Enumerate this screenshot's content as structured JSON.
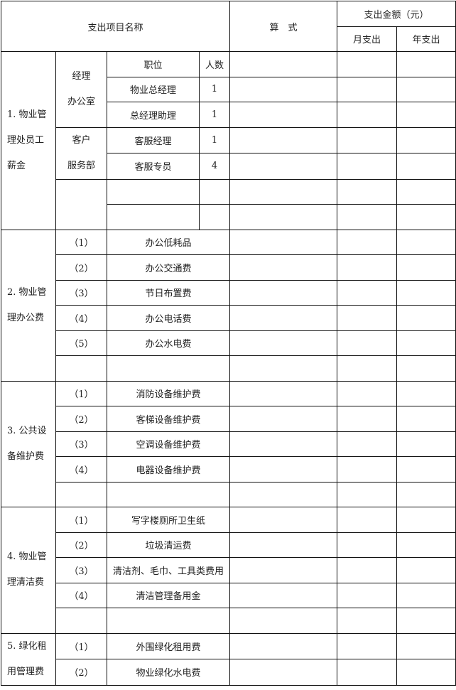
{
  "header": {
    "item_name": "支出项目名称",
    "formula": "算　式",
    "amount": "支出金额（元）",
    "monthly": "月支出",
    "yearly": "年支出"
  },
  "section1": {
    "title_lines": [
      "1. 物业管",
      "理处员工",
      "薪金"
    ],
    "position_header": "职位",
    "count_header": "人数",
    "departments": [
      {
        "name_lines": [
          "经理",
          "办公室"
        ],
        "staff": [
          {
            "position": "物业总经理",
            "count": "1"
          },
          {
            "position": "总经理助理",
            "count": "1"
          }
        ]
      },
      {
        "name_lines": [
          "客户",
          "服务部"
        ],
        "staff": [
          {
            "position": "客服经理",
            "count": "1"
          },
          {
            "position": "客服专员",
            "count": "4"
          }
        ]
      }
    ]
  },
  "sections": [
    {
      "title_lines": [
        "2. 物业管",
        "理办公费"
      ],
      "items": [
        {
          "index": "（1）",
          "name": "办公低耗品"
        },
        {
          "index": "（2）",
          "name": "办公交通费"
        },
        {
          "index": "（3）",
          "name": "节日布置费"
        },
        {
          "index": "（4）",
          "name": "办公电话费"
        },
        {
          "index": "（5）",
          "name": "办公水电费"
        },
        {
          "index": "",
          "name": ""
        }
      ]
    },
    {
      "title_lines": [
        "3. 公共设",
        "备维护费"
      ],
      "items": [
        {
          "index": "（1）",
          "name": "消防设备维护费"
        },
        {
          "index": "（2）",
          "name": "客梯设备维护费"
        },
        {
          "index": "（3）",
          "name": "空调设备维护费"
        },
        {
          "index": "（4）",
          "name": "电器设备维护费"
        },
        {
          "index": "",
          "name": ""
        }
      ]
    },
    {
      "title_lines": [
        "4. 物业管",
        "理清洁费"
      ],
      "items": [
        {
          "index": "（1）",
          "name": "写字楼厕所卫生纸"
        },
        {
          "index": "（2）",
          "name": "垃圾清运费"
        },
        {
          "index": "（3）",
          "name": "清洁剂、毛巾、工具类费用"
        },
        {
          "index": "（4）",
          "name": "清洁管理备用金"
        },
        {
          "index": "",
          "name": ""
        }
      ]
    },
    {
      "title_lines": [
        "5. 绿化租",
        "用管理费"
      ],
      "items": [
        {
          "index": "（1）",
          "name": "外围绿化租用费"
        },
        {
          "index": "（2）",
          "name": "物业绿化水电费"
        }
      ]
    }
  ]
}
